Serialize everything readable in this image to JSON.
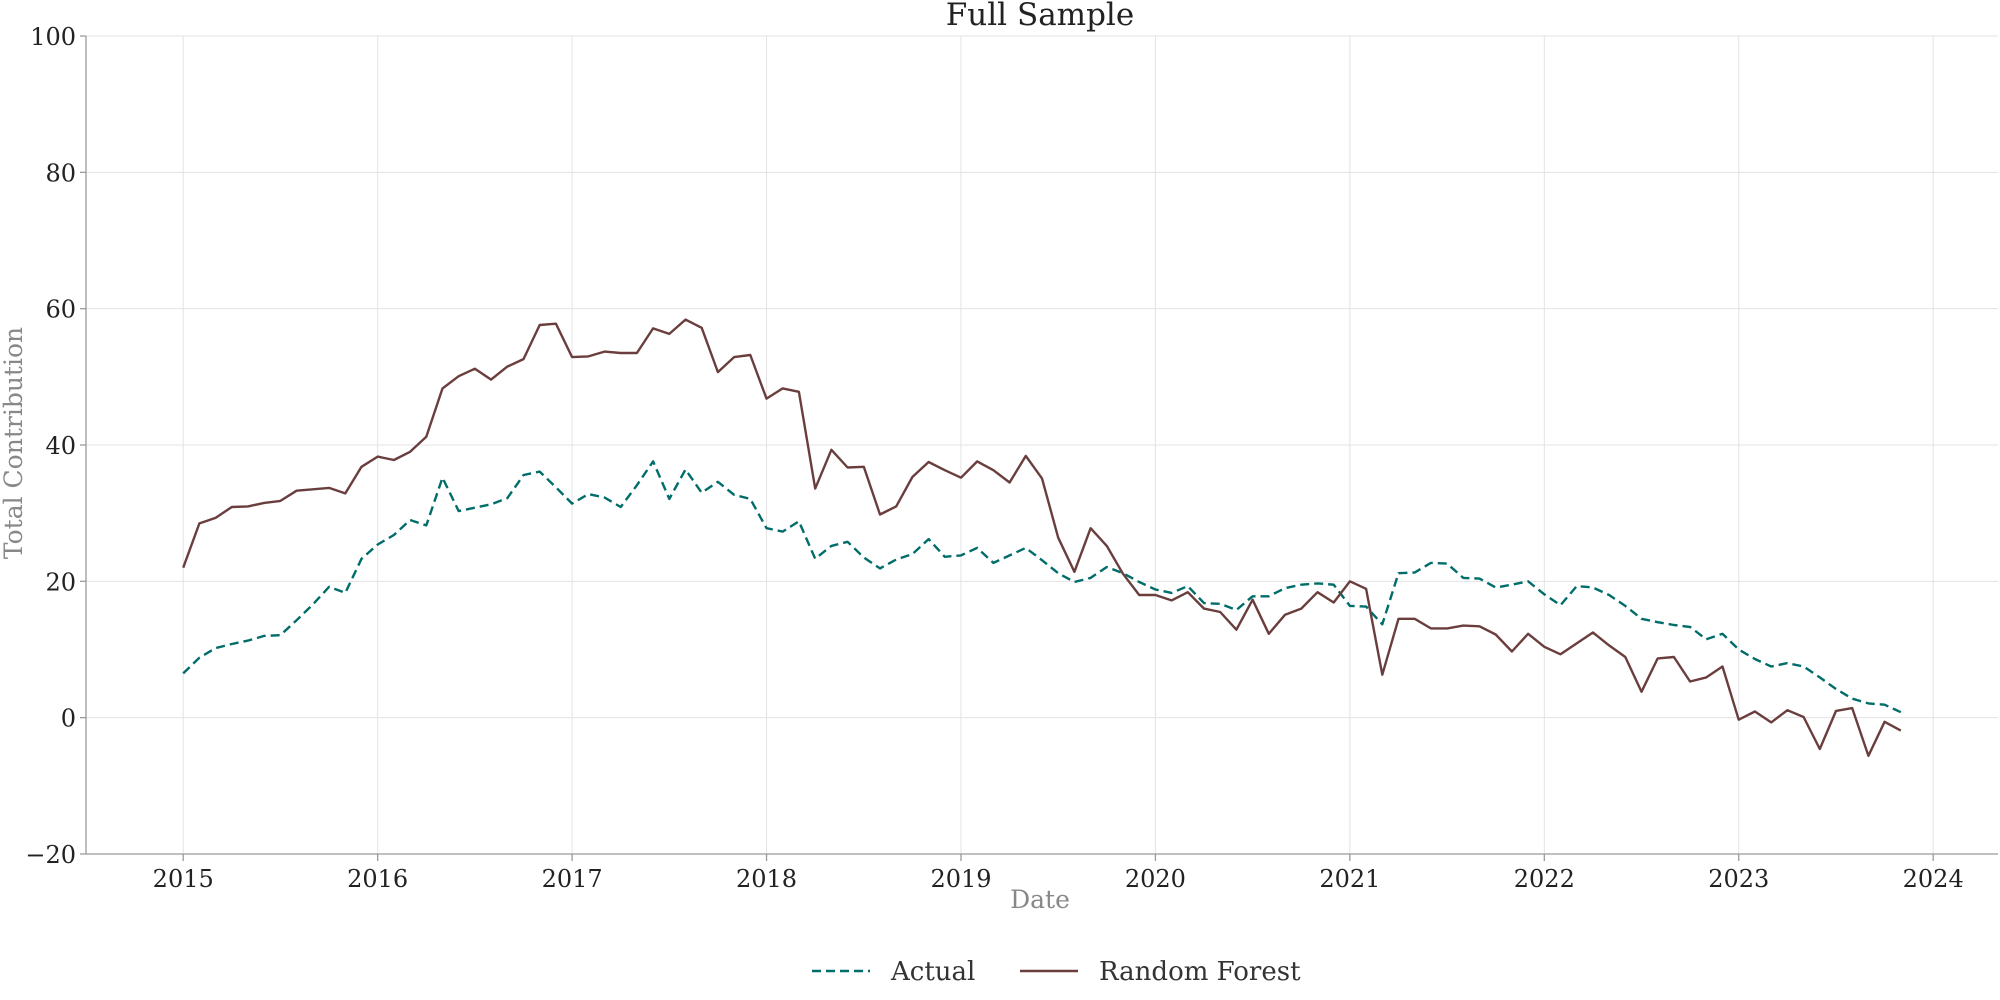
{
  "chart_data": {
    "type": "line",
    "title": "Full Sample",
    "xlabel": "Date",
    "ylabel": "Total Contribution",
    "xlim": [
      "2014-07",
      "2024-05"
    ],
    "ylim": [
      -20,
      100
    ],
    "x_ticks": [
      "2015",
      "2016",
      "2017",
      "2018",
      "2019",
      "2020",
      "2021",
      "2022",
      "2023",
      "2024"
    ],
    "y_ticks": [
      -20,
      0,
      20,
      40,
      60,
      80,
      100
    ],
    "grid": true,
    "legend_position": "bottom-center",
    "x": [
      "2015-01",
      "2015-02",
      "2015-03",
      "2015-04",
      "2015-05",
      "2015-06",
      "2015-07",
      "2015-08",
      "2015-09",
      "2015-10",
      "2015-11",
      "2015-12",
      "2016-01",
      "2016-02",
      "2016-03",
      "2016-04",
      "2016-05",
      "2016-06",
      "2016-07",
      "2016-08",
      "2016-09",
      "2016-10",
      "2016-11",
      "2016-12",
      "2017-01",
      "2017-02",
      "2017-03",
      "2017-04",
      "2017-05",
      "2017-06",
      "2017-07",
      "2017-08",
      "2017-09",
      "2017-10",
      "2017-11",
      "2017-12",
      "2018-01",
      "2018-02",
      "2018-03",
      "2018-04",
      "2018-05",
      "2018-06",
      "2018-07",
      "2018-08",
      "2018-09",
      "2018-10",
      "2018-11",
      "2018-12",
      "2019-01",
      "2019-02",
      "2019-03",
      "2019-04",
      "2019-05",
      "2019-06",
      "2019-07",
      "2019-08",
      "2019-09",
      "2019-10",
      "2019-11",
      "2019-12",
      "2020-01",
      "2020-02",
      "2020-03",
      "2020-04",
      "2020-05",
      "2020-06",
      "2020-07",
      "2020-08",
      "2020-09",
      "2020-10",
      "2020-11",
      "2020-12",
      "2021-01",
      "2021-02",
      "2021-03",
      "2021-04",
      "2021-05",
      "2021-06",
      "2021-07",
      "2021-08",
      "2021-09",
      "2021-10",
      "2021-11",
      "2021-12",
      "2022-01",
      "2022-02",
      "2022-03",
      "2022-04",
      "2022-05",
      "2022-06",
      "2022-07",
      "2022-08",
      "2022-09",
      "2022-10",
      "2022-11",
      "2022-12",
      "2023-01",
      "2023-02",
      "2023-03",
      "2023-04",
      "2023-05",
      "2023-06",
      "2023-07",
      "2023-08",
      "2023-09",
      "2023-10",
      "2023-11"
    ],
    "series": [
      {
        "name": "Actual",
        "color": "#006d6a",
        "style": "dashed",
        "values": [
          6.5,
          8.8,
          10.2,
          10.8,
          11.3,
          12.0,
          12.1,
          14.3,
          16.6,
          19.2,
          18.3,
          23.3,
          25.4,
          26.8,
          29.0,
          28.2,
          35.2,
          30.3,
          30.8,
          31.3,
          32.2,
          35.6,
          36.1,
          33.8,
          31.4,
          32.8,
          32.3,
          30.9,
          34.1,
          37.6,
          32.1,
          36.4,
          33.0,
          34.6,
          32.7,
          32.1,
          27.8,
          27.3,
          28.8,
          23.3,
          25.2,
          25.8,
          23.5,
          21.9,
          23.2,
          24.0,
          26.2,
          23.6,
          23.8,
          24.9,
          22.7,
          23.8,
          24.9,
          23.1,
          21.2,
          19.9,
          20.5,
          22.1,
          21.2,
          19.9,
          18.8,
          18.3,
          19.3,
          16.8,
          16.7,
          15.8,
          17.8,
          17.8,
          19.0,
          19.5,
          19.7,
          19.5,
          16.4,
          16.3,
          13.7,
          21.2,
          21.3,
          22.7,
          22.6,
          20.5,
          20.4,
          19.1,
          19.5,
          20.0,
          18.1,
          16.5,
          19.3,
          19.1,
          18.0,
          16.4,
          14.5,
          14.0,
          13.6,
          13.3,
          11.5,
          12.3,
          10.0,
          8.6,
          7.5,
          8.0,
          7.5,
          5.9,
          4.2,
          2.8,
          2.1,
          1.9,
          0.8
        ]
      },
      {
        "name": "Random Forest",
        "color": "#6b3e3e",
        "style": "solid",
        "values": [
          22.0,
          28.5,
          29.3,
          30.9,
          31.0,
          31.5,
          31.8,
          33.3,
          33.5,
          33.7,
          32.9,
          36.8,
          38.3,
          37.8,
          39.0,
          41.2,
          48.3,
          50.1,
          51.2,
          49.6,
          51.5,
          52.6,
          57.6,
          57.8,
          52.9,
          53.0,
          53.7,
          53.5,
          53.5,
          57.1,
          56.3,
          58.4,
          57.2,
          50.7,
          52.9,
          53.2,
          46.8,
          48.3,
          47.8,
          33.6,
          39.3,
          36.7,
          36.8,
          29.8,
          31.0,
          35.3,
          37.5,
          36.3,
          35.2,
          37.6,
          36.3,
          34.5,
          38.4,
          35.1,
          26.4,
          21.4,
          27.8,
          25.2,
          21.1,
          18.0,
          18.0,
          17.2,
          18.4,
          16.0,
          15.5,
          12.9,
          17.3,
          12.3,
          15.1,
          16.0,
          18.4,
          16.9,
          20.0,
          18.9,
          6.3,
          14.5,
          14.5,
          13.1,
          13.1,
          13.5,
          13.4,
          12.2,
          9.7,
          12.3,
          10.4,
          9.3,
          10.9,
          12.5,
          10.6,
          8.9,
          3.8,
          8.7,
          8.9,
          5.3,
          5.9,
          7.5,
          -0.3,
          0.9,
          -0.7,
          1.1,
          0.1,
          -4.6,
          1.0,
          1.4,
          -5.6,
          -0.6,
          -1.9
        ]
      }
    ]
  }
}
